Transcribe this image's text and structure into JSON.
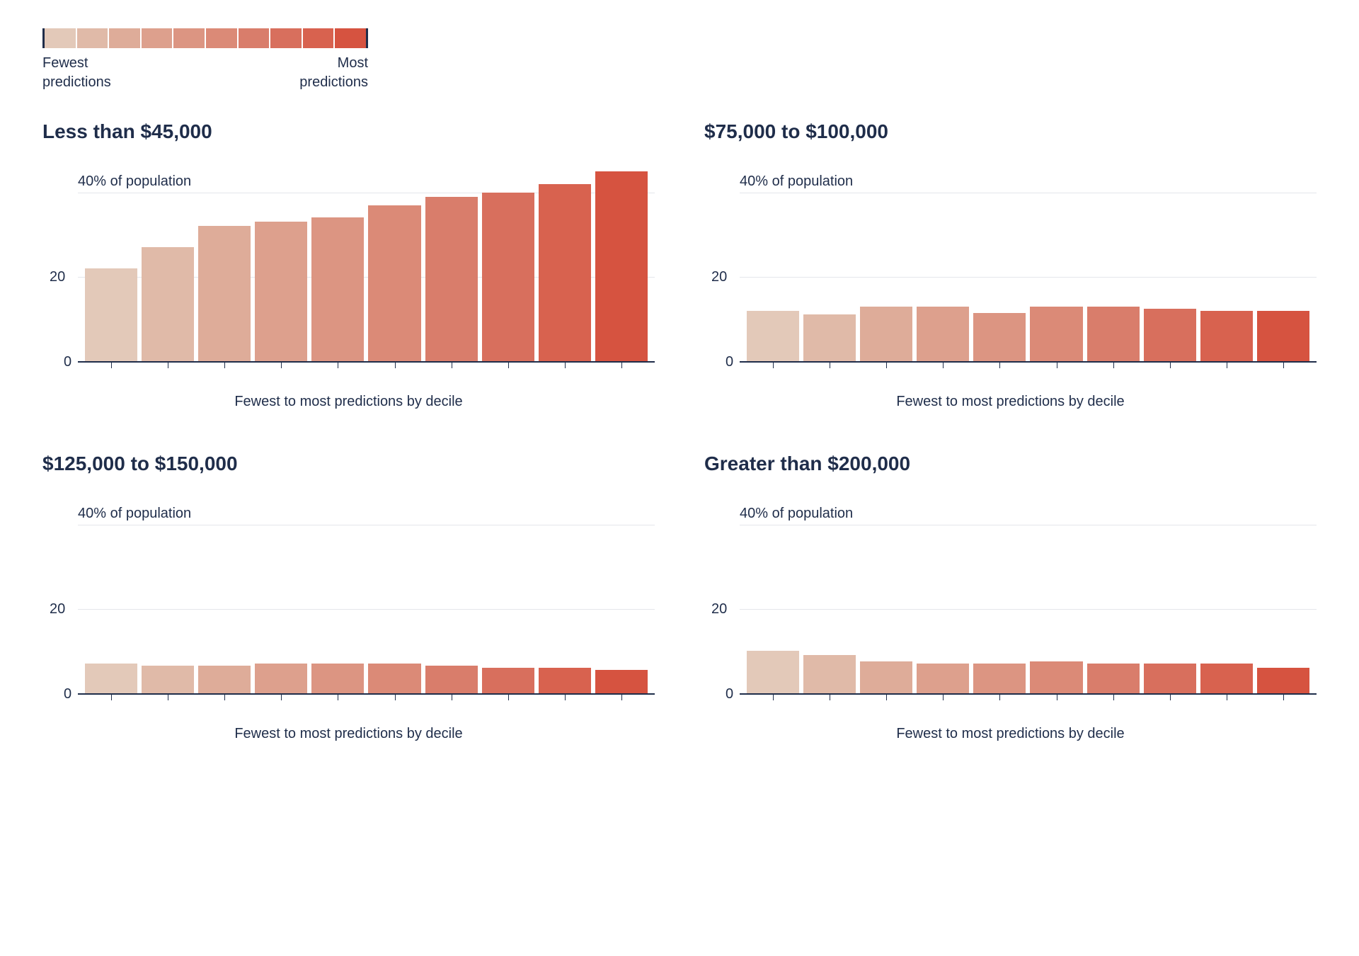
{
  "legend": {
    "left_label": "Fewest\npredictions",
    "right_label": "Most\npredictions",
    "colors": [
      "#e3c9b9",
      "#e0baa8",
      "#deac99",
      "#dda08d",
      "#dc9582",
      "#db8a77",
      "#d97d6b",
      "#d86f5d",
      "#d8624f",
      "#d65340"
    ]
  },
  "y_axis": {
    "max": 46,
    "ticks": [
      0,
      20,
      40
    ],
    "top_label": "40% of population"
  },
  "x_label": "Fewest to most predictions by decile",
  "bar_colors": [
    "#e3c9b9",
    "#e0baa8",
    "#deac99",
    "#dda08d",
    "#dc9582",
    "#db8a77",
    "#d97d6b",
    "#d86f5d",
    "#d8624f",
    "#d65340"
  ],
  "panels": [
    {
      "title": "Less than $45,000",
      "values": [
        22,
        27,
        32,
        33,
        34,
        37,
        39,
        40,
        42,
        45
      ]
    },
    {
      "title": "$75,000 to $100,000",
      "values": [
        12,
        11,
        13,
        13,
        11.5,
        13,
        13,
        12.5,
        12,
        12
      ]
    },
    {
      "title": "$125,000 to $150,000",
      "values": [
        7,
        6.5,
        6.5,
        7,
        7,
        7,
        6.5,
        6,
        6,
        5.5
      ]
    },
    {
      "title": "Greater than $200,000",
      "values": [
        10,
        9,
        7.5,
        7,
        7,
        7.5,
        7,
        7,
        7,
        6
      ]
    }
  ],
  "style": {
    "text_color": "#1f2d4a",
    "grid_color": "#e4e6eb",
    "background": "#ffffff",
    "title_fontsize": 28,
    "label_fontsize": 20
  }
}
